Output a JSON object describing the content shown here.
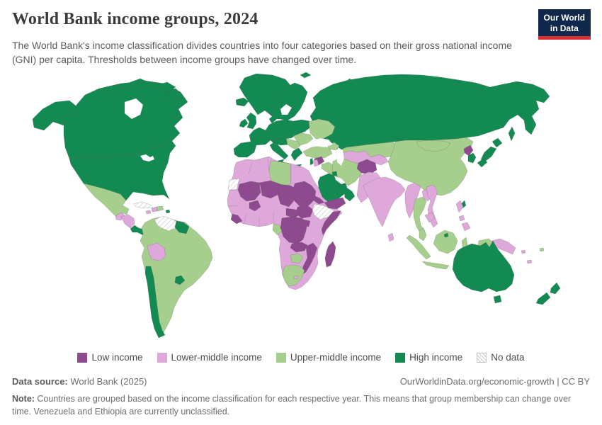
{
  "header": {
    "title": "World Bank income groups, 2024",
    "subtitle": "The World Bank's income classification divides countries into four categories based on their gross national income (GNI) per capita. Thresholds between income groups have changed over time.",
    "logo_line1": "Our World",
    "logo_line2": "in Data"
  },
  "colors": {
    "low": "#8d4a8e",
    "lower_middle": "#dfa8da",
    "upper_middle": "#a6ce8d",
    "high": "#128a52",
    "no_data": "#ffffff",
    "logo_bg": "#10284b",
    "logo_red": "#dc3039"
  },
  "legend": {
    "items": [
      {
        "label": "Low income",
        "group": "low"
      },
      {
        "label": "Lower-middle income",
        "group": "lower_middle"
      },
      {
        "label": "Upper-middle income",
        "group": "upper_middle"
      },
      {
        "label": "High income",
        "group": "high"
      },
      {
        "label": "No data",
        "group": "no_data"
      }
    ]
  },
  "footer": {
    "source_label": "Data source:",
    "source_value": " World Bank (2025)",
    "link": "OurWorldinData.org/economic-growth",
    "license": " | CC BY",
    "note_label": "Note:",
    "note_value": " Countries are grouped based on the income classification for each respective year. This means that group membership can change over time. Venezuela and Ethiopia are currently unclassified."
  },
  "map": {
    "regions": {
      "greenland": "high",
      "iceland": "high",
      "alaska": "high",
      "canada": "high",
      "arctic-islands": "high",
      "usa": "high",
      "mexico": "upper_middle",
      "guatemala": "lower_middle",
      "honduras-nicaragua": "lower_middle",
      "costa-rica-panama": "high",
      "cuba": "no_data",
      "jamaica": "lower_middle",
      "haiti": "lower_middle",
      "dominican-republic": "upper_middle",
      "puerto-rico": "high",
      "south-america": "upper_middle",
      "venezuela": "no_data",
      "guyana-suriname": "high",
      "bolivia": "lower_middle",
      "chile": "high",
      "uruguay": "high",
      "iberia": "high",
      "france": "high",
      "uk": "high",
      "ireland": "high",
      "central-europe": "high",
      "alpine-europe": "high",
      "scandinavia": "high",
      "denmark": "high",
      "italy": "high",
      "greece": "high",
      "svalbard": "high",
      "novaya-zemlya": "high",
      "russia": "high",
      "sakhalin": "high",
      "ukraine-belarus": "upper_middle",
      "balkans": "upper_middle",
      "romania-bulgaria": "upper_middle",
      "turkey": "upper_middle",
      "caucasus": "upper_middle",
      "africa-base": "lower_middle",
      "western-sahara": "no_data",
      "libya": "upper_middle",
      "mali": "low",
      "niger": "low",
      "chad": "low",
      "sudan": "low",
      "south-sudan": "low",
      "eritrea": "low",
      "ethiopia": "no_data",
      "somalia": "low",
      "sierra-leone-liberia": "low",
      "burkina-faso": "low",
      "central-african-republic": "low",
      "drc": "low",
      "uganda": "low",
      "zambia": "low",
      "mozambique-malawi": "low",
      "madagascar": "low",
      "gabon": "upper_middle",
      "botswana": "upper_middle",
      "south-africa": "upper_middle",
      "lesotho": "lower_middle",
      "saudi-arabia": "high",
      "yemen": "low",
      "oman": "high",
      "uae": "high",
      "kuwait": "high",
      "israel": "high",
      "jordan": "lower_middle",
      "syria": "low",
      "iraq": "upper_middle",
      "iran": "upper_middle",
      "kazakhstan": "upper_middle",
      "central-asia": "lower_middle",
      "afghanistan": "low",
      "pakistan": "lower_middle",
      "india": "lower_middle",
      "sri-lanka": "lower_middle",
      "china": "upper_middle",
      "mongolia": "upper_middle",
      "north-korea": "low",
      "south-korea": "high",
      "japan": "high",
      "taiwan": "high",
      "myanmar": "lower_middle",
      "thailand": "upper_middle",
      "laos": "lower_middle",
      "vietnam": "lower_middle",
      "cambodia": "lower_middle",
      "malaysia-peninsula": "upper_middle",
      "sumatra": "upper_middle",
      "java": "upper_middle",
      "borneo": "upper_middle",
      "sulawesi": "upper_middle",
      "west-papua": "upper_middle",
      "brunei": "high",
      "philippines": "lower_middle",
      "papua-new-guinea": "lower_middle",
      "solomon-vanuatu": "lower_middle",
      "fiji": "upper_middle",
      "australia": "high",
      "tasmania": "high",
      "new-zealand": "high"
    }
  }
}
